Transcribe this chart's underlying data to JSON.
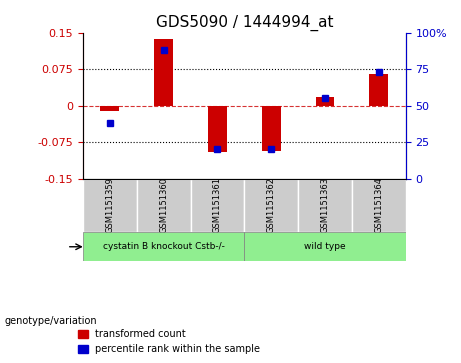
{
  "title": "GDS5090 / 1444994_at",
  "samples": [
    "GSM1151359",
    "GSM1151360",
    "GSM1151361",
    "GSM1151362",
    "GSM1151363",
    "GSM1151364"
  ],
  "red_values": [
    -0.012,
    0.138,
    -0.095,
    -0.093,
    0.018,
    0.065
  ],
  "blue_values_pct": [
    38,
    88,
    20,
    20,
    55,
    73
  ],
  "ylim_left": [
    -0.15,
    0.15
  ],
  "ylim_right": [
    0,
    100
  ],
  "yticks_left": [
    -0.15,
    -0.075,
    0,
    0.075,
    0.15
  ],
  "yticks_right": [
    0,
    25,
    50,
    75,
    100
  ],
  "hlines": [
    -0.075,
    0,
    0.075
  ],
  "left_axis_color": "#cc0000",
  "right_axis_color": "#0000cc",
  "bar_color": "#cc0000",
  "dot_color": "#0000cc",
  "zero_line_color": "#cc0000",
  "grid_color": "black",
  "groups": [
    {
      "label": "cystatin B knockout Cstb-/-",
      "indices": [
        0,
        1,
        2
      ],
      "bg_color": "#90ee90"
    },
    {
      "label": "wild type",
      "indices": [
        3,
        4,
        5
      ],
      "bg_color": "#90ee90"
    }
  ],
  "sample_bg_color": "#cccccc",
  "genotype_label": "genotype/variation",
  "legend_items": [
    {
      "color": "#cc0000",
      "label": "transformed count"
    },
    {
      "color": "#0000cc",
      "label": "percentile rank within the sample"
    }
  ]
}
